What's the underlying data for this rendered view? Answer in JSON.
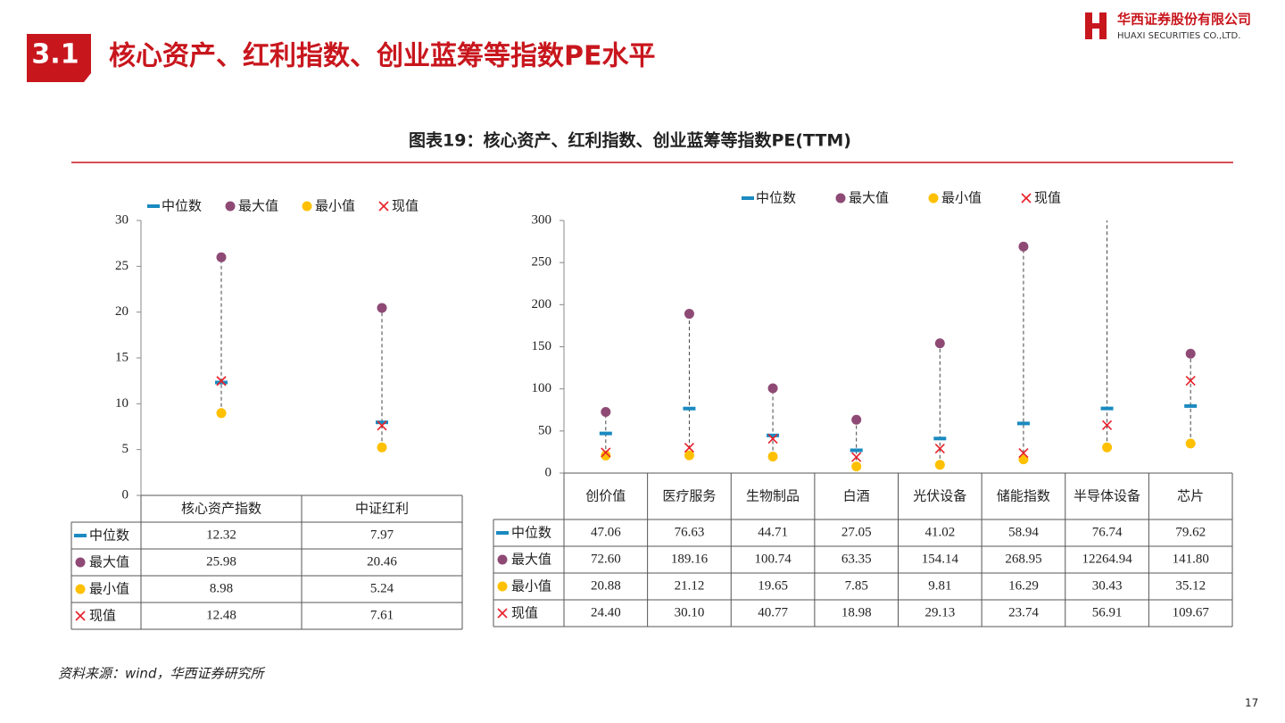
{
  "section": "3.1",
  "heading": "核心资产、红利指数、创业蓝筹等指数PE水平",
  "logo": {
    "name": "华西证券股份有限公司",
    "name_en": "HUAXI SECURITIES CO.,LTD."
  },
  "figure_title": "图表19：核心资产、红利指数、创业蓝筹等指数PE(TTM)",
  "source": "资料来源：wind，华西证券研究所",
  "page_number": "17",
  "chart_data": [
    {
      "type": "range-dot",
      "categories": [
        "核心资产指数",
        "中证红利"
      ],
      "ylim": [
        0,
        30
      ],
      "yticks": [
        0,
        5,
        10,
        15,
        20,
        25,
        30
      ],
      "series": [
        {
          "name": "中位数",
          "color": "#1a8ac0",
          "values": [
            12.32,
            7.97
          ],
          "value_labels": [
            "12.32",
            "7.97"
          ]
        },
        {
          "name": "最大值",
          "color": "#8e4a75",
          "values": [
            25.98,
            20.46
          ],
          "value_labels": [
            "25.98",
            "20.46"
          ]
        },
        {
          "name": "最小值",
          "color": "#ffc000",
          "values": [
            8.98,
            5.24
          ],
          "value_labels": [
            "8.98",
            "5.24"
          ]
        },
        {
          "name": "现值",
          "color": "#e8202a",
          "values": [
            12.48,
            7.61
          ],
          "value_labels": [
            "12.48",
            "7.61"
          ]
        }
      ]
    },
    {
      "type": "range-dot",
      "categories": [
        "创价值",
        "医疗服务",
        "生物制品",
        "白酒",
        "光伏设备",
        "储能指数",
        "半导体设备",
        "芯片"
      ],
      "ylim": [
        0,
        300
      ],
      "yticks": [
        0,
        50,
        100,
        150,
        200,
        250,
        300
      ],
      "series": [
        {
          "name": "中位数",
          "color": "#1a8ac0",
          "values": [
            47.06,
            76.63,
            44.71,
            27.05,
            41.02,
            58.94,
            76.74,
            79.62
          ],
          "value_labels": [
            "47.06",
            "76.63",
            "44.71",
            "27.05",
            "41.02",
            "58.94",
            "76.74",
            "79.62"
          ]
        },
        {
          "name": "最大值",
          "color": "#8e4a75",
          "values": [
            72.6,
            189.16,
            100.74,
            63.35,
            154.14,
            268.95,
            12264.94,
            141.8
          ],
          "value_labels": [
            "72.60",
            "189.16",
            "100.74",
            "63.35",
            "154.14",
            "268.95",
            "12264.94",
            "141.80"
          ]
        },
        {
          "name": "最小值",
          "color": "#ffc000",
          "values": [
            20.88,
            21.12,
            19.65,
            7.85,
            9.81,
            16.29,
            30.43,
            35.12
          ],
          "value_labels": [
            "20.88",
            "21.12",
            "19.65",
            "7.85",
            "9.81",
            "16.29",
            "30.43",
            "35.12"
          ]
        },
        {
          "name": "现值",
          "color": "#e8202a",
          "values": [
            24.4,
            30.1,
            40.77,
            18.98,
            29.13,
            23.74,
            56.91,
            109.67
          ],
          "value_labels": [
            "24.40",
            "30.10",
            "40.77",
            "18.98",
            "29.13",
            "23.74",
            "56.91",
            "109.67"
          ]
        }
      ]
    }
  ]
}
